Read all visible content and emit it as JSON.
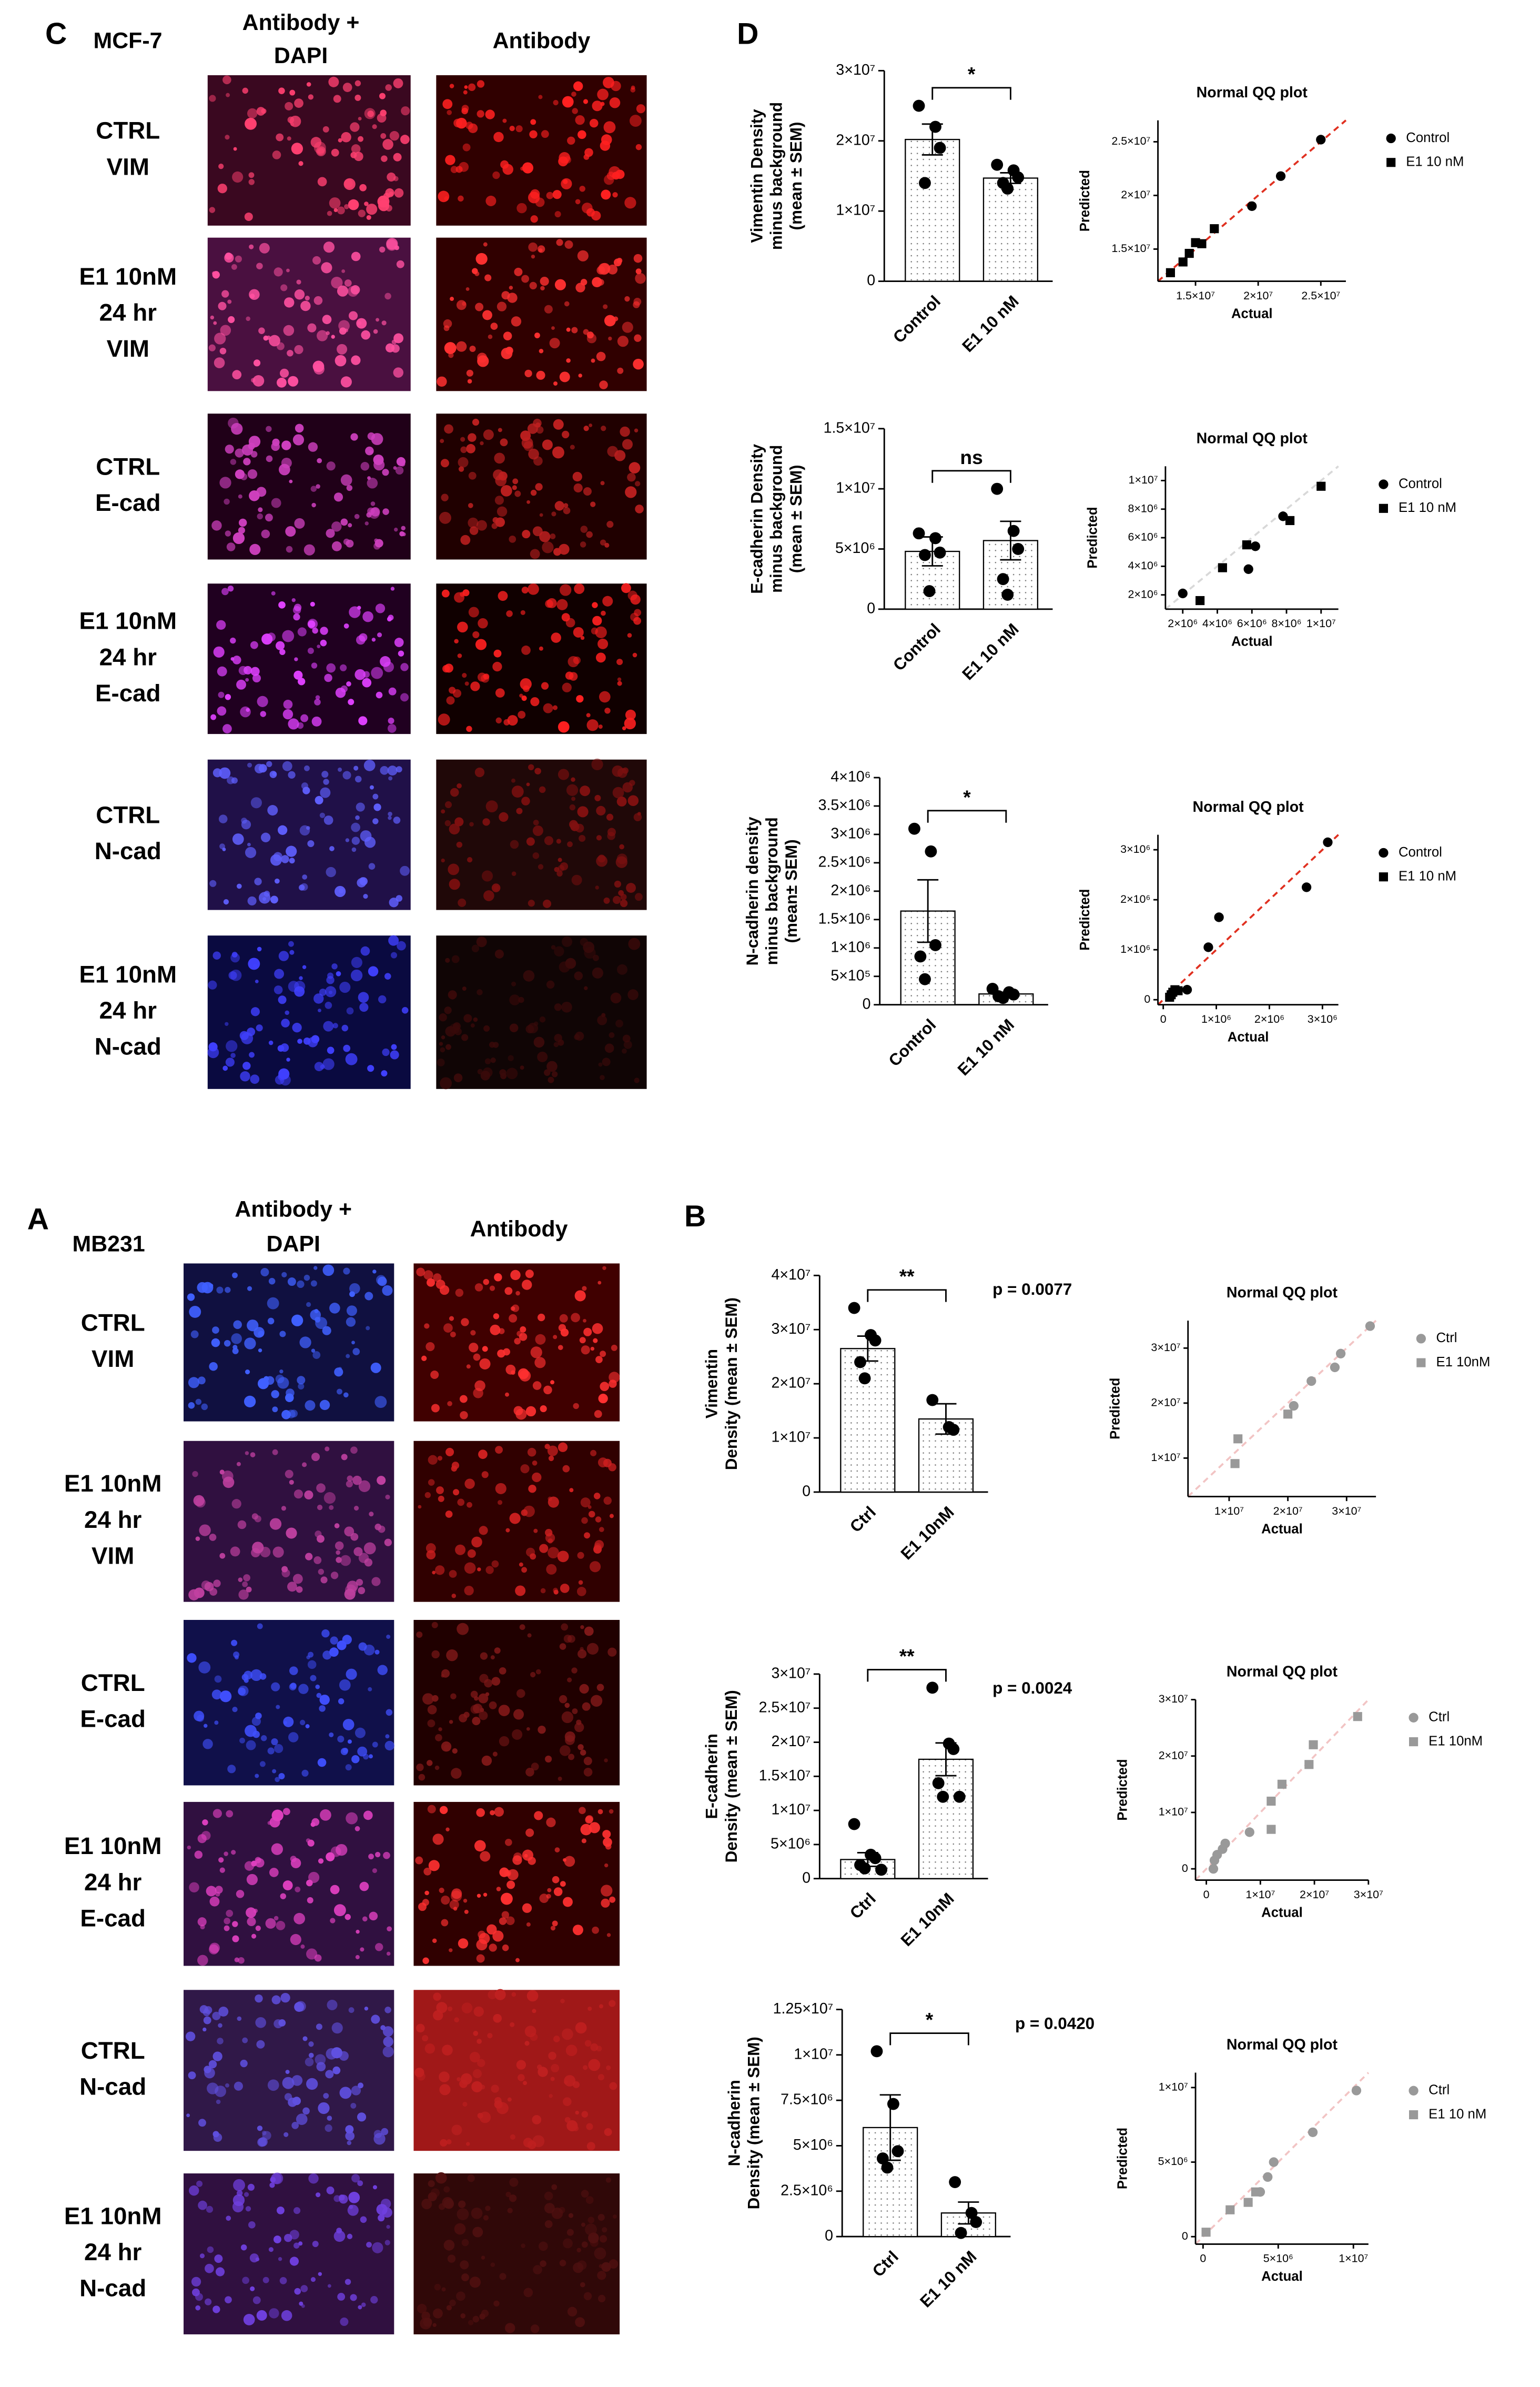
{
  "figure": {
    "mcf7": {
      "letter": "C",
      "cell_line": "MCF-7",
      "columns": [
        [
          "Antibody +",
          "DAPI"
        ],
        [
          "Antibody"
        ]
      ],
      "rows": [
        [
          "CTRL",
          "VIM"
        ],
        [
          "E1 10nM",
          "24 hr",
          "VIM"
        ],
        [
          "CTRL",
          "E-cad"
        ],
        [
          "E1 10nM",
          "24 hr",
          "E-cad"
        ],
        [
          "CTRL",
          "N-cad"
        ],
        [
          "E1 10nM",
          "24 hr",
          "N-cad"
        ]
      ],
      "charts_letter": "D"
    },
    "mb231": {
      "letter": "A",
      "cell_line": "MB231",
      "columns": [
        [
          "Antibody +",
          "DAPI"
        ],
        [
          "Antibody"
        ]
      ],
      "rows": [
        [
          "CTRL",
          "VIM"
        ],
        [
          "E1 10nM",
          "24 hr",
          "VIM"
        ],
        [
          "CTRL",
          "E-cad"
        ],
        [
          "E1 10nM",
          "24 hr",
          "E-cad"
        ],
        [
          "CTRL",
          "N-cad"
        ],
        [
          "E1 10nM",
          "24 hr",
          "N-cad"
        ]
      ],
      "charts_letter": "B"
    }
  },
  "chart_data": [
    {
      "type": "bar",
      "ylabel": [
        "Vimentin Density",
        "minus background",
        "(mean ± SEM)"
      ],
      "categories": [
        "Control",
        "E1 10 nM"
      ],
      "values": [
        20200000,
        14700000
      ],
      "errors": [
        2200000,
        750000
      ],
      "points": [
        [
          25000000,
          22000000,
          19000000,
          14000000
        ],
        [
          16600000,
          15800000,
          14800000,
          14000000,
          13200000
        ]
      ],
      "significance": "*",
      "color": "#ffffff",
      "ylim": [
        0,
        30000000
      ],
      "yticks": [
        0,
        {
          "value": 10000000,
          "label": "1×10⁷"
        },
        {
          "value": 20000000,
          "label": "2×10⁷"
        },
        {
          "value": 30000000,
          "label": "3×10⁷"
        }
      ]
    },
    {
      "type": "scatter",
      "title": "Normal QQ plot",
      "xlabel": "Actual",
      "ylabel": "Predicted",
      "reference_line_color": "#e03020",
      "series": [
        {
          "name": "Control",
          "color": "#000000",
          "marker": "circle",
          "x": [
            19500000,
            21800000,
            25000000
          ],
          "y": [
            19000000,
            21800000,
            25200000
          ]
        },
        {
          "name": "E1 10 nM",
          "color": "#000000",
          "marker": "square",
          "x": [
            13000000,
            14000000,
            14500000,
            15000000,
            15500000,
            16500000
          ],
          "y": [
            12800000,
            13800000,
            14600000,
            15600000,
            15500000,
            16900000
          ]
        }
      ],
      "xlim": [
        12000000,
        27000000
      ],
      "ylim": [
        12000000,
        27000000
      ],
      "xticks": [
        {
          "value": 15000000,
          "label": "1.5×10⁷"
        },
        {
          "value": 20000000,
          "label": "2×10⁷"
        },
        {
          "value": 25000000,
          "label": "2.5×10⁷"
        }
      ],
      "yticks": [
        {
          "value": 15000000,
          "label": "1.5×10⁷"
        },
        {
          "value": 20000000,
          "label": "2×10⁷"
        },
        {
          "value": 25000000,
          "label": "2.5×10⁷"
        }
      ]
    },
    {
      "type": "bar",
      "ylabel": [
        "E-cadherin Density",
        "minus background",
        "(mean ± SEM)"
      ],
      "categories": [
        "Control",
        "E1 10 nM"
      ],
      "values": [
        4800000,
        5700000
      ],
      "errors": [
        1200000,
        1600000
      ],
      "points": [
        [
          6300000,
          5900000,
          4700000,
          4500000,
          1500000
        ],
        [
          10000000,
          6500000,
          5000000,
          2500000,
          1200000
        ]
      ],
      "significance": "ns",
      "color": "#ffffff",
      "ylim": [
        0,
        15000000
      ],
      "yticks": [
        0,
        {
          "value": 5000000,
          "label": "5×10⁶"
        },
        {
          "value": 10000000,
          "label": "1×10⁷"
        },
        {
          "value": 15000000,
          "label": "1.5×10⁷"
        }
      ]
    },
    {
      "type": "scatter",
      "title": "Normal QQ plot",
      "xlabel": "Actual",
      "ylabel": "Predicted",
      "reference_line_color": "#d8d8d8",
      "series": [
        {
          "name": "Control",
          "color": "#000000",
          "marker": "circle",
          "x": [
            2000000,
            5800000,
            6200000,
            7800000
          ],
          "y": [
            2100000,
            3800000,
            5400000,
            7500000
          ]
        },
        {
          "name": "E1 10 nM",
          "color": "#000000",
          "marker": "square",
          "x": [
            3000000,
            4300000,
            5700000,
            8200000,
            10000000
          ],
          "y": [
            1600000,
            3900000,
            5500000,
            7200000,
            9600000
          ]
        }
      ],
      "xlim": [
        1000000,
        11000000
      ],
      "ylim": [
        1000000,
        11000000
      ],
      "xticks": [
        {
          "value": 2000000,
          "label": "2×10⁶"
        },
        {
          "value": 4000000,
          "label": "4×10⁶"
        },
        {
          "value": 6000000,
          "label": "6×10⁶"
        },
        {
          "value": 8000000,
          "label": "8×10⁶"
        },
        {
          "value": 10000000,
          "label": "1×10⁷"
        }
      ],
      "yticks": [
        {
          "value": 2000000,
          "label": "2×10⁶"
        },
        {
          "value": 4000000,
          "label": "4×10⁶"
        },
        {
          "value": 6000000,
          "label": "6×10⁶"
        },
        {
          "value": 8000000,
          "label": "8×10⁶"
        },
        {
          "value": 10000000,
          "label": "1×10⁷"
        }
      ]
    },
    {
      "type": "bar",
      "ylabel": [
        "N-cadherin density",
        "minus background",
        "(mean± SEM)"
      ],
      "categories": [
        "Control",
        "E1 10 nM"
      ],
      "values": [
        1650000,
        190000
      ],
      "errors": [
        550000,
        30000
      ],
      "points": [
        [
          3100000,
          2700000,
          1050000,
          850000,
          450000
        ],
        [
          280000,
          220000,
          180000,
          150000,
          120000
        ]
      ],
      "significance": "*",
      "color": "#ffffff",
      "ylim": [
        0,
        4000000
      ],
      "yticks": [
        0,
        {
          "value": 500000,
          "label": "5×10⁵"
        },
        {
          "value": 1000000,
          "label": "1×10⁶"
        },
        {
          "value": 1500000,
          "label": "1.5×10⁶"
        },
        {
          "value": 2000000,
          "label": "2×10⁶"
        },
        {
          "value": 2500000,
          "label": "2.5×10⁶"
        },
        {
          "value": 3000000,
          "label": "3×10⁶"
        },
        {
          "value": 3500000,
          "label": "3.5×10⁶"
        },
        {
          "value": 4000000,
          "label": "4×10⁶"
        }
      ]
    },
    {
      "type": "scatter",
      "title": "Normal QQ plot",
      "xlabel": "Actual",
      "ylabel": "Predicted",
      "reference_line_color": "#e03020",
      "series": [
        {
          "name": "Control",
          "color": "#000000",
          "marker": "circle",
          "x": [
            450000,
            850000,
            1050000,
            2700000,
            3100000
          ],
          "y": [
            200000,
            1050000,
            1650000,
            2250000,
            3150000
          ]
        },
        {
          "name": "E1 10 nM",
          "color": "#000000",
          "marker": "square",
          "x": [
            120000,
            150000,
            180000,
            220000,
            280000
          ],
          "y": [
            50000,
            100000,
            150000,
            200000,
            180000
          ]
        }
      ],
      "xlim": [
        -100000,
        3300000
      ],
      "ylim": [
        -100000,
        3300000
      ],
      "xticks": [
        0,
        {
          "value": 1000000,
          "label": "1×10⁶"
        },
        {
          "value": 2000000,
          "label": "2×10⁶"
        },
        {
          "value": 3000000,
          "label": "3×10⁶"
        }
      ],
      "yticks": [
        0,
        {
          "value": 1000000,
          "label": "1×10⁶"
        },
        {
          "value": 2000000,
          "label": "2×10⁶"
        },
        {
          "value": 3000000,
          "label": "3×10⁶"
        }
      ]
    },
    {
      "type": "bar",
      "ylabel": [
        "Vimentin",
        "Density (mean ± SEM)"
      ],
      "categories": [
        "Ctrl",
        "E1 10nM"
      ],
      "values": [
        26500000,
        13500000
      ],
      "errors": [
        2300000,
        2800000
      ],
      "points": [
        [
          34000000,
          29000000,
          28000000,
          24000000,
          21000000
        ],
        [
          17000000,
          12000000,
          11500000
        ]
      ],
      "significance": "**",
      "p_value": "p = 0.0077",
      "color": "#ffffff",
      "ylim": [
        0,
        40000000
      ],
      "yticks": [
        0,
        {
          "value": 10000000,
          "label": "1×10⁷"
        },
        {
          "value": 20000000,
          "label": "2×10⁷"
        },
        {
          "value": 30000000,
          "label": "3×10⁷"
        },
        {
          "value": 40000000,
          "label": "4×10⁷"
        }
      ]
    },
    {
      "type": "scatter",
      "title": "Normal QQ plot",
      "xlabel": "Actual",
      "ylabel": "Predicted",
      "reference_line_color": "#f2c4c4",
      "series": [
        {
          "name": "Ctrl",
          "color": "#999999",
          "marker": "circle",
          "x": [
            21000000,
            24000000,
            28000000,
            29000000,
            34000000
          ],
          "y": [
            19500000,
            24000000,
            26500000,
            29000000,
            34000000
          ]
        },
        {
          "name": "E1 10nM",
          "color": "#999999",
          "marker": "square",
          "x": [
            11000000,
            11500000,
            20000000
          ],
          "y": [
            9000000,
            13500000,
            18000000
          ]
        }
      ],
      "xlim": [
        3000000,
        35000000
      ],
      "ylim": [
        3000000,
        35000000
      ],
      "xticks": [
        {
          "value": 10000000,
          "label": "1×10⁷"
        },
        {
          "value": 20000000,
          "label": "2×10⁷"
        },
        {
          "value": 30000000,
          "label": "3×10⁷"
        }
      ],
      "yticks": [
        {
          "value": 10000000,
          "label": "1×10⁷"
        },
        {
          "value": 20000000,
          "label": "2×10⁷"
        },
        {
          "value": 30000000,
          "label": "3×10⁷"
        }
      ]
    },
    {
      "type": "bar",
      "ylabel": [
        "E-cadherin",
        "Density (mean ± SEM)"
      ],
      "categories": [
        "Ctrl",
        "E1 10nM"
      ],
      "values": [
        2800000,
        17500000
      ],
      "errors": [
        1000000,
        2400000
      ],
      "points": [
        [
          8000000,
          3500000,
          3000000,
          2000000,
          1500000,
          1300000
        ],
        [
          28000000,
          19800000,
          19000000,
          14000000,
          12000000,
          12000000
        ]
      ],
      "significance": "**",
      "p_value": "p = 0.0024",
      "color": "#ffffff",
      "ylim": [
        0,
        30000000
      ],
      "yticks": [
        0,
        {
          "value": 5000000,
          "label": "5×10⁶"
        },
        {
          "value": 10000000,
          "label": "1×10⁷"
        },
        {
          "value": 15000000,
          "label": "1.5×10⁷"
        },
        {
          "value": 20000000,
          "label": "2×10⁷"
        },
        {
          "value": 25000000,
          "label": "2.5×10⁷"
        },
        {
          "value": 30000000,
          "label": "3×10⁷"
        }
      ]
    },
    {
      "type": "scatter",
      "title": "Normal QQ plot",
      "xlabel": "Actual",
      "ylabel": "Predicted",
      "reference_line_color": "#f2c4c4",
      "series": [
        {
          "name": "Ctrl",
          "color": "#999999",
          "marker": "circle",
          "x": [
            1300000,
            1500000,
            2000000,
            3000000,
            3500000,
            8000000
          ],
          "y": [
            0,
            1500000,
            2500000,
            3500000,
            4500000,
            6500000
          ]
        },
        {
          "name": "E1 10nM",
          "color": "#999999",
          "marker": "square",
          "x": [
            12000000,
            12000000,
            14000000,
            19000000,
            19800000,
            28000000
          ],
          "y": [
            7000000,
            12000000,
            15000000,
            18500000,
            22000000,
            27000000
          ]
        }
      ],
      "xlim": [
        -2000000,
        30000000
      ],
      "ylim": [
        -2000000,
        30000000
      ],
      "xticks": [
        0,
        {
          "value": 10000000,
          "label": "1×10⁷"
        },
        {
          "value": 20000000,
          "label": "2×10⁷"
        },
        {
          "value": 30000000,
          "label": "3×10⁷"
        }
      ],
      "yticks": [
        0,
        {
          "value": 10000000,
          "label": "1×10⁷"
        },
        {
          "value": 20000000,
          "label": "2×10⁷"
        },
        {
          "value": 30000000,
          "label": "3×10⁷"
        }
      ]
    },
    {
      "type": "bar",
      "ylabel": [
        "N-cadherin",
        "Density (mean ± SEM)"
      ],
      "categories": [
        "Ctrl",
        "E1 10 nM"
      ],
      "values": [
        6000000,
        1300000
      ],
      "errors": [
        1800000,
        600000
      ],
      "points": [
        [
          10200000,
          7300000,
          4700000,
          4300000,
          3800000
        ],
        [
          3000000,
          1300000,
          800000,
          200000
        ]
      ],
      "significance": "*",
      "p_value": "p = 0.0420",
      "color": "#ffffff",
      "ylim": [
        0,
        12500000
      ],
      "yticks": [
        0,
        {
          "value": 2500000,
          "label": "2.5×10⁶"
        },
        {
          "value": 5000000,
          "label": "5×10⁶"
        },
        {
          "value": 7500000,
          "label": "7.5×10⁶"
        },
        {
          "value": 10000000,
          "label": "1×10⁷"
        },
        {
          "value": 12500000,
          "label": "1.25×10⁷"
        }
      ]
    },
    {
      "type": "scatter",
      "title": "Normal QQ plot",
      "xlabel": "Actual",
      "ylabel": "Predicted",
      "reference_line_color": "#f2c4c4",
      "series": [
        {
          "name": "Ctrl",
          "color": "#999999",
          "marker": "circle",
          "x": [
            3800000,
            4300000,
            4700000,
            7300000,
            10200000
          ],
          "y": [
            3000000,
            4000000,
            5000000,
            7000000,
            9800000
          ]
        },
        {
          "name": "E1 10 nM",
          "color": "#999999",
          "marker": "square",
          "x": [
            200000,
            1800000,
            3000000,
            3500000
          ],
          "y": [
            300000,
            1800000,
            2300000,
            3000000
          ]
        }
      ],
      "xlim": [
        -500000,
        11000000
      ],
      "ylim": [
        -500000,
        11000000
      ],
      "xticks": [
        0,
        {
          "value": 5000000,
          "label": "5×10⁶"
        },
        {
          "value": 10000000,
          "label": "1×10⁷"
        }
      ],
      "yticks": [
        0,
        {
          "value": 5000000,
          "label": "5×10⁶"
        },
        {
          "value": 10000000,
          "label": "1×10⁷"
        }
      ]
    }
  ]
}
